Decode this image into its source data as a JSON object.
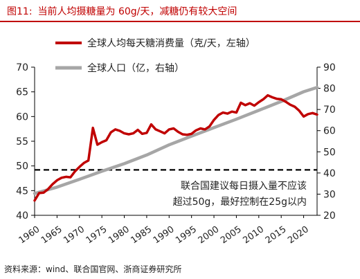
{
  "figure": {
    "number": "图11:",
    "title": "当前人均摄糖量为 60g/天，减糖仍有较大空间",
    "source": "资料来源：wind、联合国官网、浙商证券研究所"
  },
  "colors": {
    "sugar": "#c00000",
    "population": "#a6a6a6",
    "title": "#c00000",
    "threshold": "#000000"
  },
  "chart_data": {
    "type": "line",
    "x_ticks": [
      1960,
      1965,
      1970,
      1975,
      1980,
      1985,
      1990,
      1995,
      2000,
      2005,
      2010,
      2015,
      2020
    ],
    "xlim": [
      1960,
      2023
    ],
    "y_left": {
      "lim": [
        40,
        70
      ],
      "ticks": [
        40,
        45,
        50,
        55,
        60,
        65,
        70
      ]
    },
    "y_right": {
      "lim": [
        20,
        90
      ],
      "ticks": [
        20,
        30,
        40,
        50,
        60,
        70,
        80,
        90
      ]
    },
    "legend_position": "top-left",
    "grid": false,
    "series": [
      {
        "name": "全球人均每天糖消费量（克/天，左轴）",
        "axis": "left",
        "x": [
          1960,
          1961,
          1962,
          1963,
          1964,
          1965,
          1966,
          1967,
          1968,
          1969,
          1970,
          1971,
          1972,
          1973,
          1974,
          1975,
          1976,
          1977,
          1978,
          1979,
          1980,
          1981,
          1982,
          1983,
          1984,
          1985,
          1986,
          1987,
          1988,
          1989,
          1990,
          1991,
          1992,
          1993,
          1994,
          1995,
          1996,
          1997,
          1998,
          1999,
          2000,
          2001,
          2002,
          2003,
          2004,
          2005,
          2006,
          2007,
          2008,
          2009,
          2010,
          2011,
          2012,
          2013,
          2014,
          2015,
          2016,
          2017,
          2018,
          2019,
          2020,
          2021,
          2022,
          2023
        ],
        "values": [
          43.0,
          44.5,
          44.6,
          45.3,
          46.3,
          47.1,
          47.6,
          47.8,
          47.7,
          48.9,
          49.8,
          50.6,
          51.1,
          57.7,
          54.3,
          54.8,
          55.2,
          56.8,
          57.4,
          57.1,
          56.6,
          56.4,
          56.6,
          57.3,
          56.5,
          56.7,
          58.4,
          57.4,
          57.0,
          56.6,
          57.4,
          57.6,
          56.9,
          56.4,
          56.3,
          56.5,
          57.2,
          57.6,
          57.4,
          58.0,
          59.3,
          60.3,
          60.8,
          60.6,
          61.0,
          60.8,
          62.8,
          62.3,
          62.7,
          62.2,
          62.9,
          63.5,
          64.3,
          63.9,
          63.6,
          63.5,
          63.0,
          62.4,
          62.0,
          61.2,
          60.0,
          60.5,
          60.7,
          60.4
        ]
      },
      {
        "name": "全球人口（亿，右轴）",
        "axis": "right",
        "x": [
          1960,
          1965,
          1970,
          1975,
          1980,
          1985,
          1990,
          1995,
          2000,
          2005,
          2010,
          2015,
          2020,
          2023
        ],
        "values": [
          30.3,
          33.3,
          37.0,
          40.8,
          44.4,
          48.5,
          53.3,
          57.4,
          61.4,
          65.4,
          69.6,
          73.8,
          78.4,
          80.4
        ]
      }
    ],
    "threshold": {
      "axis": "left",
      "value": 49.2
    },
    "annotation": [
      "联合国建议每日摄入量不应该",
      "超过50g，最好控制在25g以内"
    ]
  }
}
